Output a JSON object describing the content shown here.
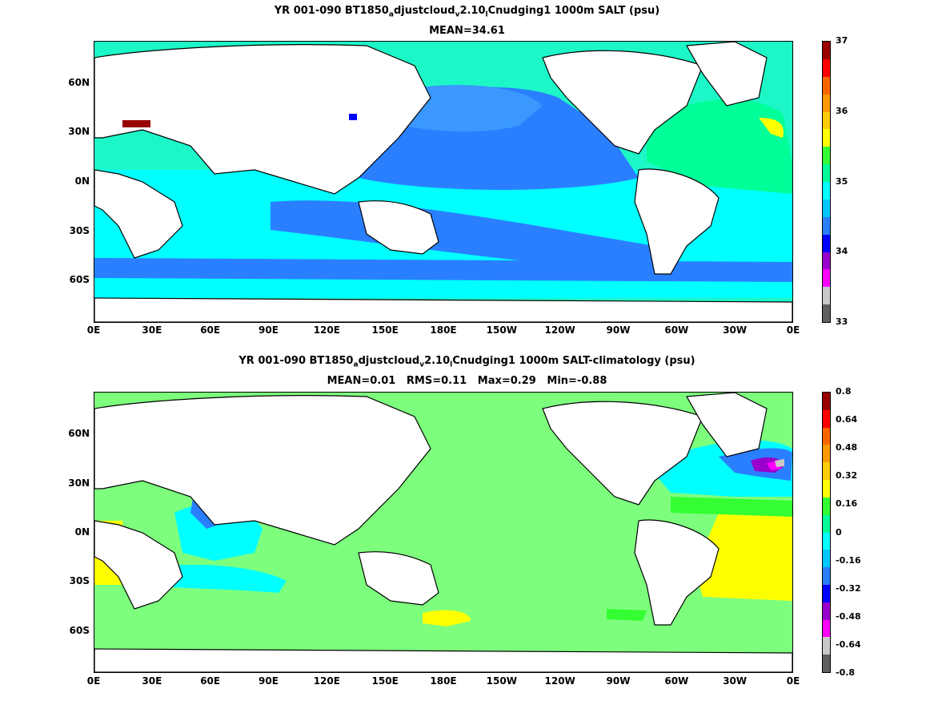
{
  "panels": [
    {
      "title_line1_parts": [
        "YR 001-090 BT1850",
        "a",
        "djustcloud",
        "v",
        "2.10",
        "l",
        "Cnudging1 1000m SALT (psu)"
      ],
      "title_line2": "MEAN=34.61",
      "background_color": "#1df7c8",
      "colorbar_colors": [
        "#606060",
        "#c8c8c8",
        "#ff00ff",
        "#9900cc",
        "#0000ff",
        "#2a7fff",
        "#00c8ff",
        "#00ffff",
        "#00ff99",
        "#33ff33",
        "#ffff00",
        "#ffcc00",
        "#ff9900",
        "#ff6600",
        "#ff0000",
        "#990000"
      ],
      "colorbar_labels": [
        "33",
        "34",
        "35",
        "36",
        "37"
      ]
    },
    {
      "title_line1_parts": [
        "YR 001-090 BT1850",
        "a",
        "djustcloud",
        "v",
        "2.10",
        "l",
        "Cnudging1 1000m SALT-climatology (psu)"
      ],
      "title_line2": "MEAN=0.01   RMS=0.11   Max=0.29   Min=-0.88",
      "background_color": "#7dff7d",
      "colorbar_colors": [
        "#606060",
        "#c8c8c8",
        "#ff00ff",
        "#9900cc",
        "#0000ff",
        "#2a7fff",
        "#00c8ff",
        "#00ffff",
        "#00ff99",
        "#33ff33",
        "#ffff00",
        "#ffcc00",
        "#ff9900",
        "#ff6600",
        "#ff0000",
        "#990000"
      ],
      "colorbar_labels": [
        "-0.8",
        "-0.64",
        "-0.48",
        "-0.32",
        "-0.16",
        "0",
        "0.16",
        "0.32",
        "0.48",
        "0.64",
        "0.8"
      ]
    }
  ],
  "x_ticks": [
    "0E",
    "30E",
    "60E",
    "90E",
    "120E",
    "150E",
    "180E",
    "150W",
    "120W",
    "90W",
    "60W",
    "30W",
    "0E"
  ],
  "y_ticks": [
    "60N",
    "30N",
    "0N",
    "30S",
    "60S"
  ]
}
